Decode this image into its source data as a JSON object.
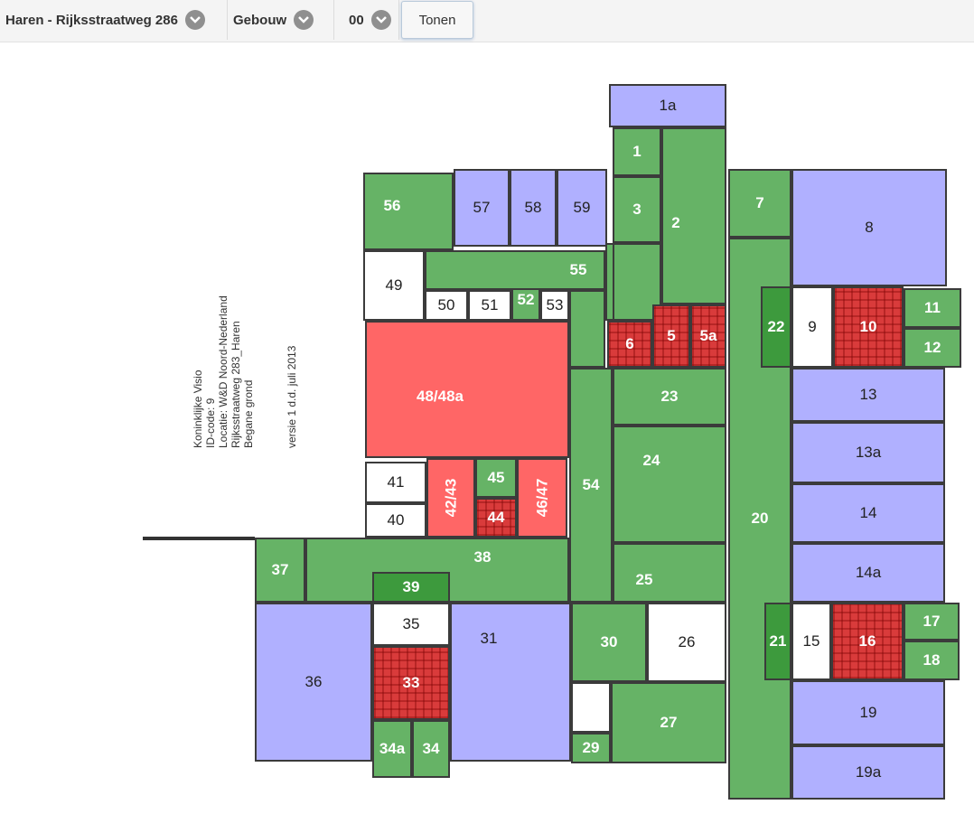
{
  "toolbar": {
    "location": "Haren - Rijksstraatweg 286",
    "building": "Gebouw",
    "floor": "00",
    "show_button": "Tonen"
  },
  "plan_info": {
    "lines": [
      "Koninklijke Visio",
      "ID-code: 9",
      "Locatie: W&D Noord-Nederland",
      "Rijksstraatweg 283_Haren",
      "Begane grond"
    ],
    "version": "versie 1 d.d. juli 2013"
  },
  "colors": {
    "green": "#66b366",
    "dark_green": "#3d9a3d",
    "blue": "#b0b0ff",
    "red": "#ff6666",
    "dark_red": "#d93b3b",
    "white": "#ffffff"
  },
  "rooms": [
    {
      "id": "1a",
      "color": "b"
    },
    {
      "id": "1",
      "color": "g"
    },
    {
      "id": "2",
      "color": "g"
    },
    {
      "id": "3",
      "color": "g"
    },
    {
      "id": "5",
      "color": "dr"
    },
    {
      "id": "5a",
      "color": "dr"
    },
    {
      "id": "6",
      "color": "dr"
    },
    {
      "id": "7",
      "color": "g"
    },
    {
      "id": "8",
      "color": "b"
    },
    {
      "id": "9",
      "color": "w"
    },
    {
      "id": "10",
      "color": "dr"
    },
    {
      "id": "11",
      "color": "g"
    },
    {
      "id": "12",
      "color": "g"
    },
    {
      "id": "13",
      "color": "b"
    },
    {
      "id": "13a",
      "color": "b"
    },
    {
      "id": "14",
      "color": "b"
    },
    {
      "id": "14a",
      "color": "b"
    },
    {
      "id": "15",
      "color": "w"
    },
    {
      "id": "16",
      "color": "dr"
    },
    {
      "id": "17",
      "color": "g"
    },
    {
      "id": "18",
      "color": "g"
    },
    {
      "id": "19",
      "color": "b"
    },
    {
      "id": "19a",
      "color": "b"
    },
    {
      "id": "20",
      "color": "g"
    },
    {
      "id": "21",
      "color": "dg"
    },
    {
      "id": "22",
      "color": "dg"
    },
    {
      "id": "23",
      "color": "g"
    },
    {
      "id": "24",
      "color": "g"
    },
    {
      "id": "25",
      "color": "g"
    },
    {
      "id": "26",
      "color": "w"
    },
    {
      "id": "27",
      "color": "g"
    },
    {
      "id": "29",
      "color": "g"
    },
    {
      "id": "30",
      "color": "g"
    },
    {
      "id": "31",
      "color": "b"
    },
    {
      "id": "33",
      "color": "dr"
    },
    {
      "id": "34",
      "color": "g"
    },
    {
      "id": "34a",
      "color": "g"
    },
    {
      "id": "35",
      "color": "w"
    },
    {
      "id": "36",
      "color": "b"
    },
    {
      "id": "37",
      "color": "g"
    },
    {
      "id": "38",
      "color": "g"
    },
    {
      "id": "39",
      "color": "dg"
    },
    {
      "id": "40",
      "color": "w"
    },
    {
      "id": "41",
      "color": "w"
    },
    {
      "id": "42/43",
      "color": "r"
    },
    {
      "id": "44",
      "color": "dr"
    },
    {
      "id": "45",
      "color": "g"
    },
    {
      "id": "46/47",
      "color": "r"
    },
    {
      "id": "48/48a",
      "color": "r"
    },
    {
      "id": "49",
      "color": "w"
    },
    {
      "id": "50",
      "color": "w"
    },
    {
      "id": "51",
      "color": "w"
    },
    {
      "id": "52",
      "color": "g"
    },
    {
      "id": "53",
      "color": "w"
    },
    {
      "id": "54",
      "color": "g"
    },
    {
      "id": "55",
      "color": "g"
    },
    {
      "id": "56",
      "color": "g"
    },
    {
      "id": "57",
      "color": "b"
    },
    {
      "id": "58",
      "color": "b"
    },
    {
      "id": "59",
      "color": "b"
    }
  ]
}
